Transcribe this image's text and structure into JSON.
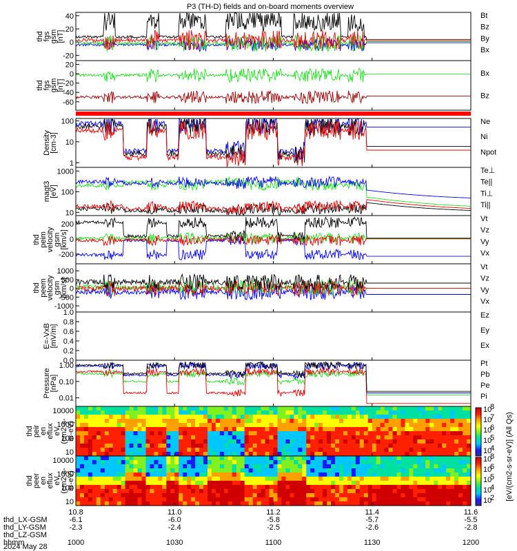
{
  "title": "P3 (TH-D) fields and on-board moments overview",
  "colors": {
    "black": "#000000",
    "red": "#e00000",
    "green": "#22dd22",
    "blue": "#0000ee",
    "darkred": "#990000"
  },
  "chart_data": [
    {
      "type": "line",
      "ylabel": [
        "thd",
        "fgs",
        "gsm",
        "[nT]"
      ],
      "yticks": [
        "40",
        "20",
        "0",
        "-20"
      ],
      "ylim": [
        -28,
        45
      ],
      "series": [
        {
          "name": "Bt",
          "color": "#000000"
        },
        {
          "name": "Bz",
          "color": "#e00000"
        },
        {
          "name": "By",
          "color": "#22dd22"
        },
        {
          "name": "Bx",
          "color": "#0000ee"
        }
      ]
    },
    {
      "type": "line",
      "ylabel": [
        "thd",
        "fgs",
        "gsm",
        "[nT]"
      ],
      "yticks": [
        "20",
        "0",
        "-20",
        "-40",
        "-60"
      ],
      "ylim": [
        -78,
        28
      ],
      "series": [
        {
          "name": "Bx",
          "color": "#22dd22"
        },
        {
          "name": "Bz",
          "color": "#990000"
        }
      ]
    },
    {
      "type": "line",
      "ylabel": [
        "Density",
        "[cm-3]"
      ],
      "yticks": [
        "100",
        "10",
        "1"
      ],
      "ylim": [
        0.6,
        130
      ],
      "log": true,
      "series": [
        {
          "name": "Ne",
          "color": "#e00000"
        },
        {
          "name": "Ni",
          "color": "#000000"
        },
        {
          "name": "Npot",
          "color": "#0000ee"
        }
      ]
    },
    {
      "type": "line",
      "ylabel": [
        "magt3",
        "[eV]"
      ],
      "yticks": [
        "1000",
        "100",
        "10"
      ],
      "ylim": [
        7,
        1500
      ],
      "log": true,
      "series": [
        {
          "name": "Te⊥",
          "color": "#e00000"
        },
        {
          "name": "Te||",
          "color": "#000000"
        },
        {
          "name": "Ti⊥",
          "color": "#0000ee"
        },
        {
          "name": "Ti||",
          "color": "#22dd22"
        }
      ]
    },
    {
      "type": "line",
      "ylabel": [
        "thd",
        "peim",
        "velocity",
        "gsm",
        "[km/s]"
      ],
      "yticks": [
        "200",
        "0",
        "-200"
      ],
      "ylim": [
        -330,
        310
      ],
      "series": [
        {
          "name": "Vt",
          "color": "#000000"
        },
        {
          "name": "Vz",
          "color": "#e00000"
        },
        {
          "name": "Vy",
          "color": "#22dd22"
        },
        {
          "name": "Vx",
          "color": "#0000ee"
        }
      ]
    },
    {
      "type": "line",
      "ylabel": [
        "thd",
        "peem",
        "velocity",
        "gsm",
        "[km/s]"
      ],
      "yticks": [
        "1000",
        "500",
        "0",
        "-500",
        "-1000"
      ],
      "ylim": [
        -1350,
        1400
      ],
      "series": [
        {
          "name": "Vt",
          "color": "#000000"
        },
        {
          "name": "Vz",
          "color": "#e00000"
        },
        {
          "name": "Vy",
          "color": "#22dd22"
        },
        {
          "name": "Vx",
          "color": "#0000ee"
        }
      ]
    },
    {
      "type": "line",
      "ylabel": [
        "E=-VxB",
        "[mV/m]"
      ],
      "yticks": [
        "1.0",
        "0.8",
        "0.6",
        "0.4",
        "0.2",
        "0.0"
      ],
      "ylim": [
        0,
        1
      ],
      "series": [
        {
          "name": "Ez",
          "color": "#e00000"
        },
        {
          "name": "Ey",
          "color": "#22dd22"
        },
        {
          "name": "Ex",
          "color": "#0000ee"
        }
      ]
    },
    {
      "type": "line",
      "ylabel": [
        "Pressure",
        "[nPa]"
      ],
      "yticks": [
        "1.00",
        "0.10",
        "0.01"
      ],
      "ylim": [
        0.003,
        2
      ],
      "log": true,
      "series": [
        {
          "name": "Pt",
          "color": "#000000"
        },
        {
          "name": "Pb",
          "color": "#e00000"
        },
        {
          "name": "Pe",
          "color": "#22dd22"
        },
        {
          "name": "Pi",
          "color": "#0000ee"
        }
      ]
    },
    {
      "type": "heatmap",
      "ylabel": [
        "thd",
        "peir",
        "en",
        "eflux",
        "eV",
        "(cm2-s-",
        "sr-eV)"
      ],
      "yticks": [
        "10000",
        "1000",
        "100",
        "10"
      ]
    },
    {
      "type": "heatmap",
      "ylabel": [
        "thd",
        "peer",
        "en",
        "eflux",
        "eV",
        "(cm2-s-",
        "sr-eV)"
      ],
      "yticks": [
        "10000",
        "1000",
        "100",
        "10"
      ]
    }
  ],
  "colorbar": {
    "label": "[eV/(cm2-s-sr-eV)] (All Qs)",
    "ticks_top": [
      "10",
      "10",
      "10",
      "10",
      "10"
    ],
    "exps_top": [
      "8",
      "7",
      "6",
      "5",
      "4"
    ],
    "ticks_bottom": [
      "10",
      "10",
      "10",
      "10",
      "10"
    ],
    "exps_bottom": [
      "8",
      "6",
      "5",
      "4",
      "2"
    ]
  },
  "xaxis": {
    "ticks": [
      "10.8",
      "11.0",
      "11.2",
      "11.4",
      "11.6"
    ],
    "rows": [
      {
        "label": "thd_LX-GSM",
        "values": [
          "-6.1",
          "-6.0",
          "-5.8",
          "-5.7",
          "-5.5"
        ]
      },
      {
        "label": "thd_LY-GSM",
        "values": [
          "-2.3",
          "-2.4",
          "-2.5",
          "-2.6",
          "-2.8"
        ]
      },
      {
        "label": "thd_LZ-GSM",
        "values": [
          "",
          "",
          "",
          "",
          ""
        ]
      },
      {
        "label": "hhmm",
        "values": [
          "1000",
          "1030",
          "1100",
          "1130",
          "1200"
        ]
      }
    ],
    "date": "2024 May 28"
  }
}
